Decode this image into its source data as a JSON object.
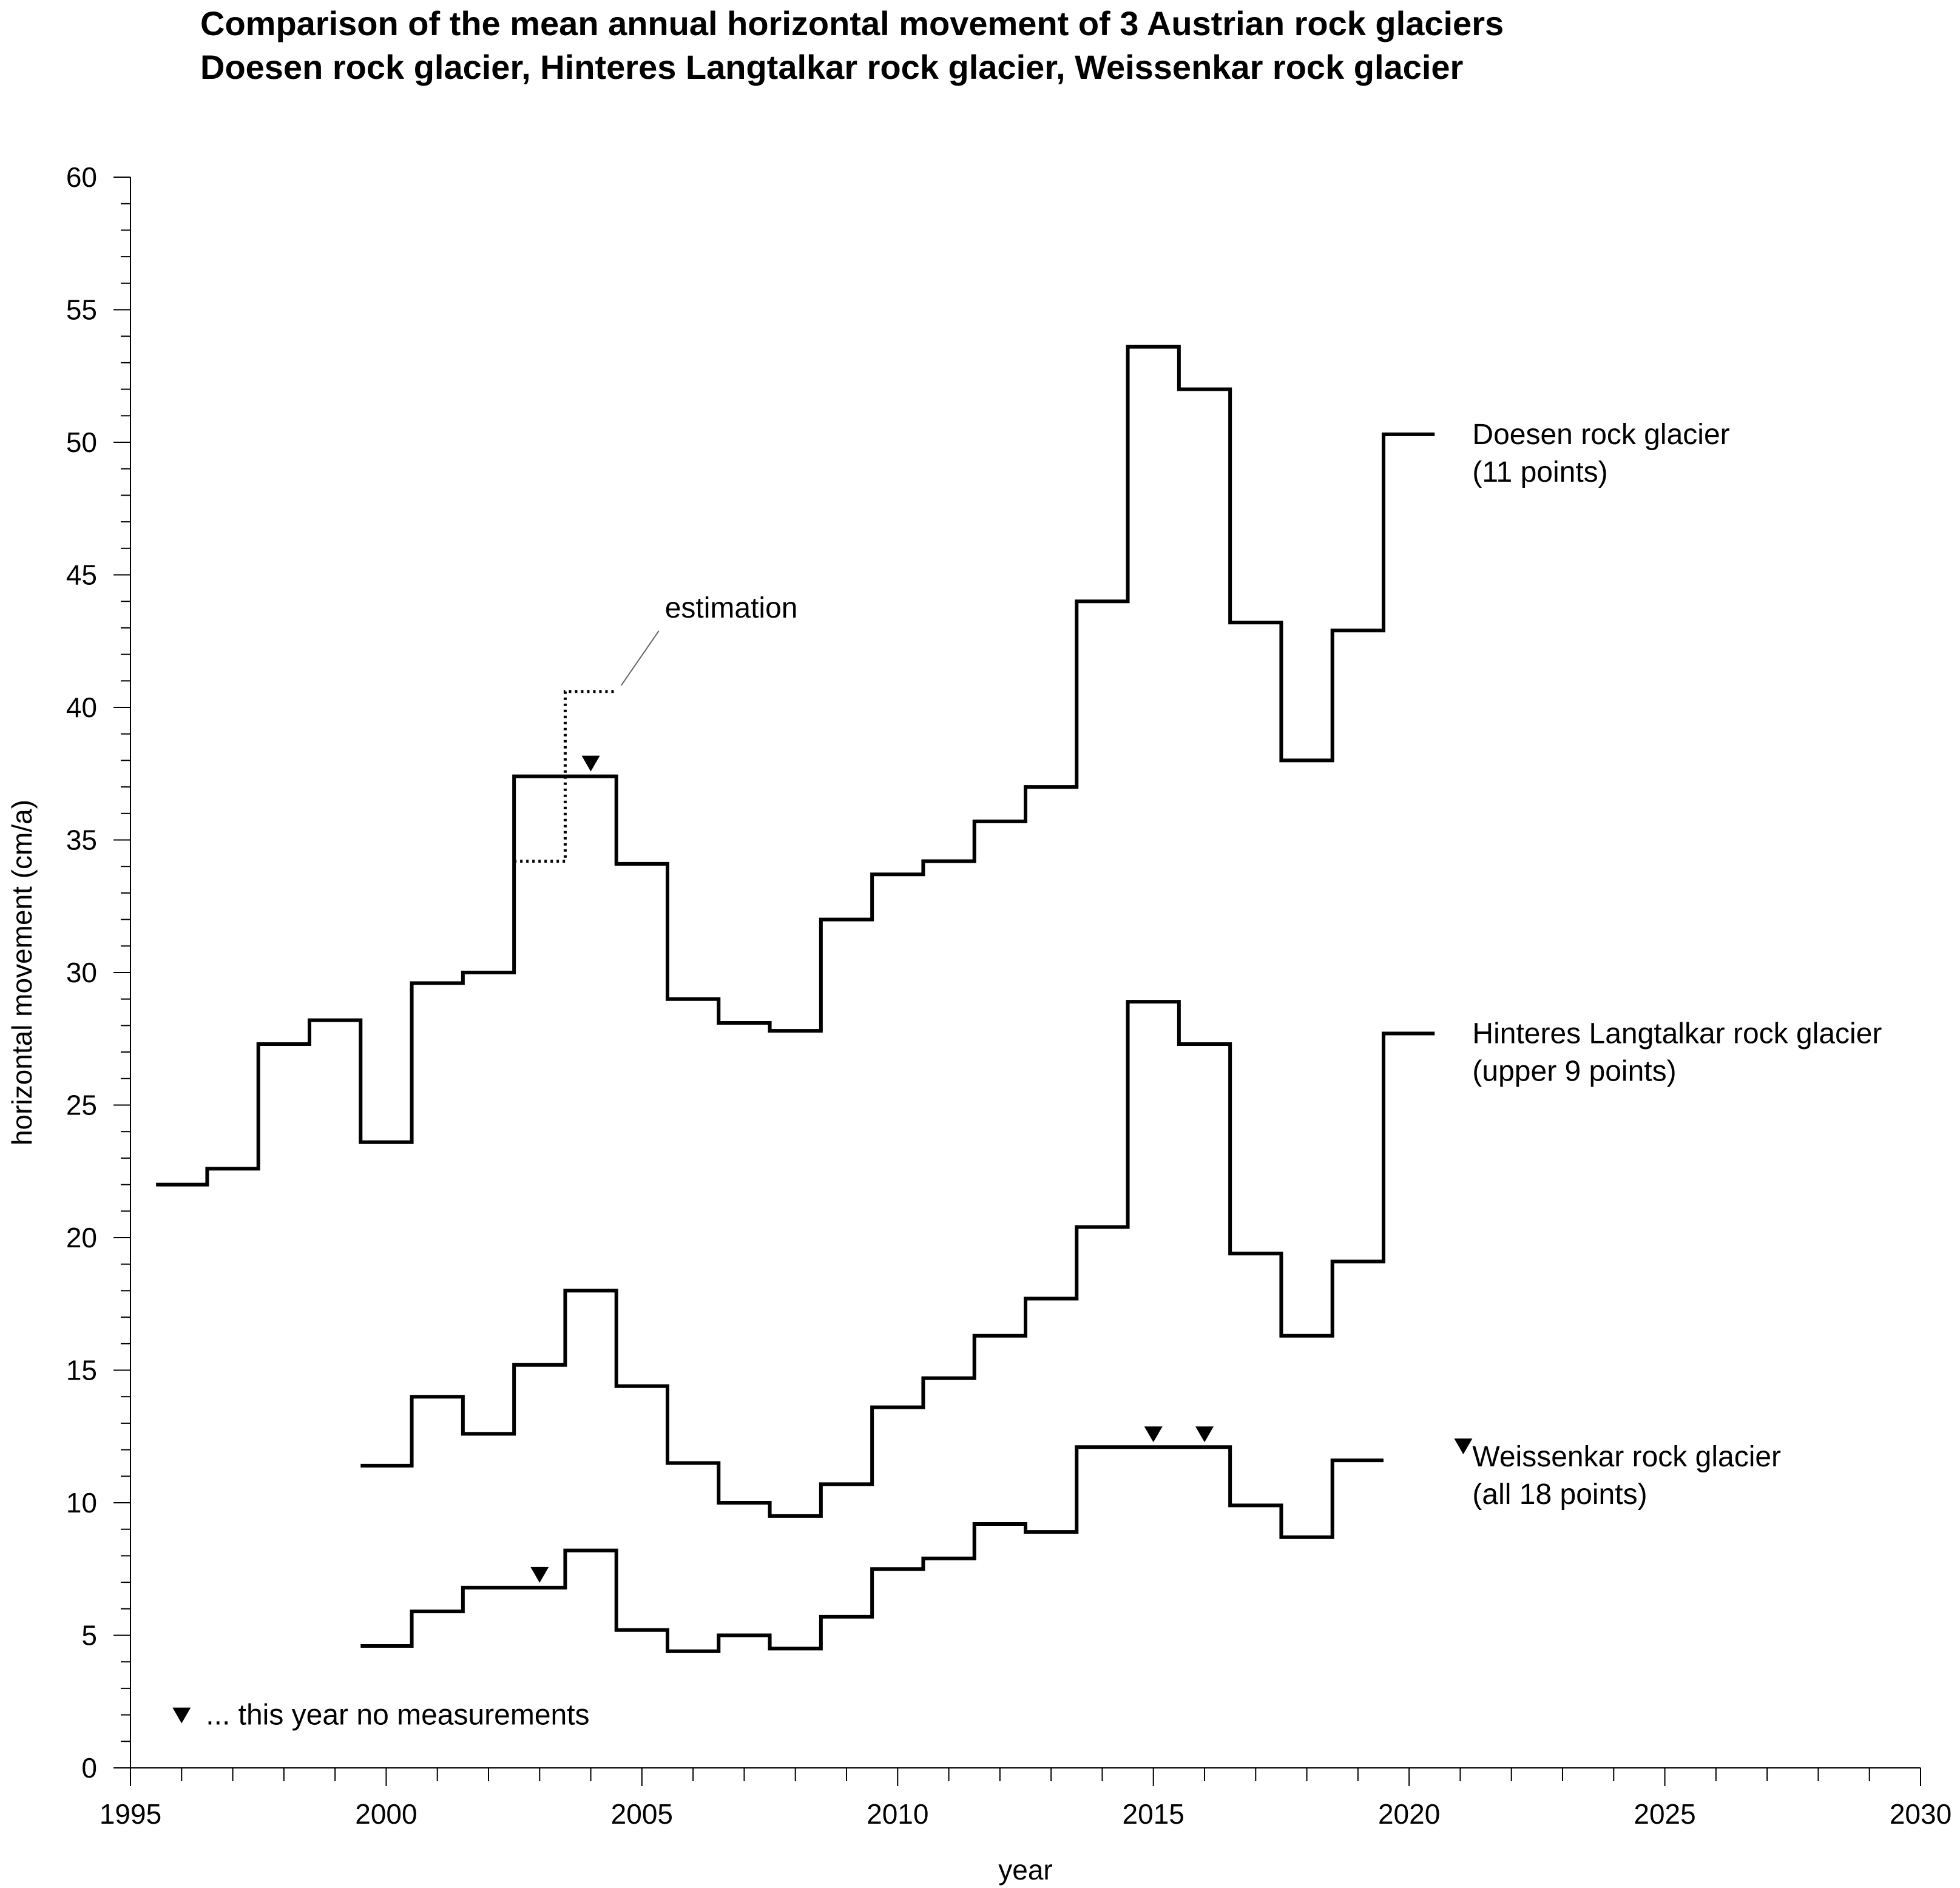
{
  "chart_data": {
    "type": "line",
    "step": true,
    "title": "Comparison of the mean annual horizontal movement of 3 Austrian rock glaciers",
    "subtitle": "Doesen rock glacier, Hinteres Langtalkar rock glacier, Weissenkar rock glacier",
    "xlabel": "year",
    "ylabel": "horizontal movement (cm/a)",
    "xlim": [
      1995,
      2030
    ],
    "ylim": [
      0,
      60
    ],
    "x_ticks": [
      1995,
      2000,
      2005,
      2010,
      2015,
      2020,
      2025,
      2030
    ],
    "y_ticks": [
      0,
      5,
      10,
      15,
      20,
      25,
      30,
      35,
      40,
      45,
      50,
      55,
      60
    ],
    "grid": false,
    "series": [
      {
        "name": "Doesen rock glacier",
        "label_line2": "(11 points)",
        "x": [
          1996,
          1997,
          1998,
          1999,
          2000,
          2001,
          2002,
          2003,
          2004,
          2005,
          2006,
          2007,
          2008,
          2009,
          2010,
          2011,
          2012,
          2013,
          2014,
          2015,
          2016,
          2017,
          2018,
          2019,
          2020
        ],
        "values": [
          22.0,
          22.6,
          27.3,
          28.2,
          23.6,
          29.6,
          30.0,
          37.4,
          37.4,
          34.1,
          29.0,
          28.1,
          27.8,
          32.0,
          33.7,
          34.2,
          35.7,
          37.0,
          44.0,
          53.6,
          52.0,
          43.2,
          38.0,
          42.9,
          50.3
        ]
      },
      {
        "name": "Doesen rock glacier estimation",
        "x": [
          2003,
          2004
        ],
        "values": [
          34.2,
          40.6
        ]
      },
      {
        "name": "Hinteres Langtalkar rock glacier",
        "label_line2": "(upper 9 points)",
        "x": [
          2000,
          2001,
          2002,
          2003,
          2004,
          2005,
          2006,
          2007,
          2008,
          2009,
          2010,
          2011,
          2012,
          2013,
          2014,
          2015,
          2016,
          2017,
          2018,
          2019,
          2020
        ],
        "values": [
          11.4,
          14.0,
          12.6,
          15.2,
          18.0,
          14.4,
          11.5,
          10.0,
          9.5,
          10.7,
          13.6,
          14.7,
          16.3,
          17.7,
          20.4,
          28.9,
          27.3,
          19.4,
          16.3,
          19.1,
          27.7
        ]
      },
      {
        "name": "Weissenkar rock glacier",
        "label_line2": "(all 18 points)",
        "x": [
          2000,
          2001,
          2002,
          2003,
          2004,
          2005,
          2006,
          2007,
          2008,
          2009,
          2010,
          2011,
          2012,
          2013,
          2014,
          2015,
          2016,
          2017,
          2018,
          2019
        ],
        "values": [
          4.6,
          5.9,
          6.8,
          6.8,
          8.2,
          5.2,
          4.4,
          5.0,
          4.5,
          5.7,
          7.5,
          7.9,
          9.2,
          8.9,
          12.1,
          12.1,
          12.1,
          9.9,
          8.7,
          11.6
        ]
      }
    ],
    "annotations": [
      {
        "text": "estimation"
      },
      {
        "text": "... this year no measurements",
        "marker": "down-triangle"
      }
    ],
    "no_measurement_markers": [
      {
        "series": "Doesen rock glacier",
        "x": 2004
      },
      {
        "series": "Weissenkar rock glacier",
        "x": 2003
      },
      {
        "series": "Weissenkar rock glacier",
        "x": 2015
      },
      {
        "series": "Weissenkar rock glacier",
        "x": 2016
      },
      {
        "series": "Weissenkar rock glacier",
        "x": 2021
      }
    ]
  }
}
